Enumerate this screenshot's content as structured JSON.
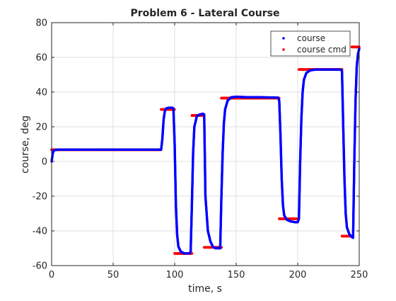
{
  "chart_data": {
    "type": "line",
    "title": "Problem 6 - Lateral Course",
    "xlabel": "time, s",
    "ylabel": "course, deg",
    "xlim": [
      0,
      250
    ],
    "ylim": [
      -60,
      80
    ],
    "xticks": [
      0,
      50,
      100,
      150,
      200,
      250
    ],
    "yticks": [
      -60,
      -40,
      -20,
      0,
      20,
      40,
      60,
      80
    ],
    "grid": true,
    "legend_position": "top-right",
    "series": [
      {
        "name": "course",
        "color": "#0000ff",
        "style": "dots",
        "points": [
          [
            0,
            0
          ],
          [
            1,
            5
          ],
          [
            2,
            6.5
          ],
          [
            5,
            6.8
          ],
          [
            10,
            6.8
          ],
          [
            30,
            6.8
          ],
          [
            60,
            6.8
          ],
          [
            88,
            6.8
          ],
          [
            89,
            6.8
          ],
          [
            90,
            13
          ],
          [
            91,
            24
          ],
          [
            92,
            29
          ],
          [
            93,
            30.5
          ],
          [
            95,
            31
          ],
          [
            98,
            31
          ],
          [
            99,
            30.5
          ],
          [
            100,
            10
          ],
          [
            101,
            -25
          ],
          [
            102,
            -42
          ],
          [
            103,
            -49
          ],
          [
            105,
            -52
          ],
          [
            108,
            -53
          ],
          [
            112,
            -53
          ],
          [
            113,
            -52
          ],
          [
            114,
            -25
          ],
          [
            115,
            5
          ],
          [
            116,
            20
          ],
          [
            118,
            26
          ],
          [
            120,
            27
          ],
          [
            123,
            27.5
          ],
          [
            124,
            27
          ],
          [
            125,
            -20
          ],
          [
            127,
            -40
          ],
          [
            129,
            -46
          ],
          [
            131,
            -49
          ],
          [
            133,
            -50
          ],
          [
            137,
            -50
          ],
          [
            138,
            -20
          ],
          [
            139,
            5
          ],
          [
            140,
            22
          ],
          [
            141,
            30
          ],
          [
            143,
            35
          ],
          [
            146,
            37
          ],
          [
            150,
            37.3
          ],
          [
            160,
            37
          ],
          [
            170,
            37
          ],
          [
            184,
            36.8
          ],
          [
            185,
            35
          ],
          [
            186,
            15
          ],
          [
            187,
            -10
          ],
          [
            188,
            -25
          ],
          [
            189,
            -31
          ],
          [
            191,
            -33.5
          ],
          [
            194,
            -34.5
          ],
          [
            198,
            -35
          ],
          [
            200,
            -35
          ],
          [
            201,
            -33
          ],
          [
            202,
            0
          ],
          [
            203,
            25
          ],
          [
            204,
            40
          ],
          [
            205,
            47
          ],
          [
            207,
            51
          ],
          [
            210,
            52.5
          ],
          [
            215,
            53
          ],
          [
            225,
            53
          ],
          [
            235,
            53
          ],
          [
            236,
            52
          ],
          [
            237,
            20
          ],
          [
            238,
            -10
          ],
          [
            239,
            -30
          ],
          [
            240,
            -38
          ],
          [
            242,
            -42
          ],
          [
            244,
            -43.5
          ],
          [
            245,
            -44
          ],
          [
            246,
            0
          ],
          [
            247,
            35
          ],
          [
            248,
            55
          ],
          [
            249,
            62
          ],
          [
            250,
            65
          ]
        ]
      },
      {
        "name": "course cmd",
        "color": "#ff0000",
        "style": "dots",
        "segments": [
          [
            0,
            89,
            6.8
          ],
          [
            89,
            100,
            30
          ],
          [
            100,
            114,
            -53
          ],
          [
            114,
            124,
            26.5
          ],
          [
            124,
            138,
            -49.5
          ],
          [
            138,
            185,
            36.5
          ],
          [
            185,
            201,
            -33
          ],
          [
            201,
            236,
            53
          ],
          [
            236,
            244,
            -43
          ],
          [
            244,
            250,
            66
          ]
        ]
      }
    ]
  }
}
